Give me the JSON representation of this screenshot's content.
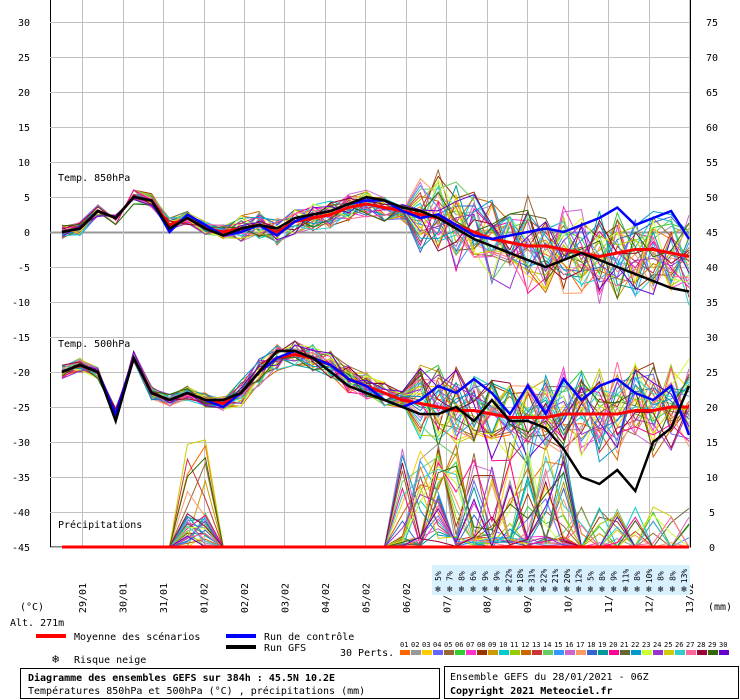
{
  "chart_data": {
    "type": "line",
    "title": "Diagramme des ensembles GEFS sur 384h : 45.5N 10.2E",
    "subtitle": "Températures 850hPa et 500hPa (°C) , précipitations (mm)",
    "run_info": "Ensemble GEFS du 28/01/2021 - 06Z",
    "copyright": "Copyright 2021 Meteociel.fr",
    "altitude": "Alt. 271m",
    "left_unit": "(°C)",
    "right_unit": "(mm)",
    "panel_labels": {
      "t850": "Temp. 850hPa",
      "t500": "Temp. 500hPa",
      "precip": "Précipitations"
    },
    "left_axis": {
      "ticks": [
        30,
        25,
        20,
        15,
        10,
        5,
        0,
        -5,
        -10,
        -15,
        -20,
        -25,
        -30,
        -35,
        -40,
        -45
      ],
      "ylim": [
        -45,
        30
      ]
    },
    "right_axis": {
      "ticks": [
        75,
        70,
        65,
        60,
        55,
        50,
        45,
        40,
        35,
        30,
        25,
        20,
        15,
        10,
        5,
        0
      ],
      "ylim": [
        0,
        75
      ]
    },
    "x_ticks": [
      "29/01",
      "30/01",
      "31/01",
      "01/02",
      "02/02",
      "03/02",
      "04/02",
      "05/02",
      "06/02",
      "07/02",
      "08/02",
      "09/02",
      "10/02",
      "11/02",
      "12/02",
      "13/02"
    ],
    "snow_risk": [
      "5%",
      "7%",
      "8%",
      "6%",
      "9%",
      "9%",
      "22%",
      "18%",
      "31%",
      "22%",
      "21%",
      "20%",
      "12%",
      "5%",
      "8%",
      "9%",
      "11%",
      "8%",
      "10%",
      "8%",
      "8%",
      "13%"
    ],
    "legend": {
      "mean": "Moyenne des scénarios",
      "control": "Run de contrôle",
      "gfs": "Run GFS",
      "snow": "Risque neige",
      "perts_label": "30 Perts.",
      "perts": [
        "01",
        "02",
        "03",
        "04",
        "05",
        "06",
        "07",
        "08",
        "09",
        "10",
        "11",
        "12",
        "13",
        "14",
        "15",
        "16",
        "17",
        "18",
        "19",
        "20",
        "21",
        "22",
        "23",
        "24",
        "25",
        "26",
        "27",
        "28",
        "29",
        "30"
      ],
      "pert_colors": [
        "#ff6600",
        "#999999",
        "#ffcc00",
        "#6666ff",
        "#996633",
        "#33cc33",
        "#ff33cc",
        "#993300",
        "#cc9900",
        "#00cccc",
        "#99cc00",
        "#cc6600",
        "#cc3333",
        "#66cc66",
        "#3399ff",
        "#cc66cc",
        "#ff9966",
        "#3366cc",
        "#009999",
        "#ff0099",
        "#666633",
        "#0099cc",
        "#ccff33",
        "#9933cc",
        "#cccc00",
        "#33cccc",
        "#ff6699",
        "#990033",
        "#336600",
        "#6600cc"
      ]
    },
    "series_colors": {
      "mean": "#ff0000",
      "control": "#0000ff",
      "gfs": "#000000"
    },
    "series": [
      {
        "name": "Moyenne des scénarios",
        "panel": "t850",
        "values": [
          0,
          0.5,
          3,
          2,
          5,
          4.5,
          1,
          2,
          0.5,
          0,
          0.5,
          1,
          0,
          1.5,
          2,
          2.5,
          3.5,
          4,
          3.5,
          3,
          2.5,
          2,
          1,
          0,
          -1,
          -1.5,
          -2,
          -2,
          -2.5,
          -3,
          -3.5,
          -3,
          -2.5,
          -2.5,
          -3,
          -3.5
        ]
      },
      {
        "name": "Run de contrôle",
        "panel": "t850",
        "values": [
          0,
          0.5,
          3,
          2,
          5,
          4.5,
          0,
          2.5,
          1,
          -0.5,
          0,
          1,
          -0.5,
          1.5,
          2.5,
          3,
          4,
          4.5,
          4.5,
          3,
          2,
          2.5,
          1,
          -0.5,
          -1,
          -0.5,
          0,
          0.5,
          0,
          1,
          2,
          3.5,
          1,
          2,
          3,
          -1
        ]
      },
      {
        "name": "Run GFS",
        "panel": "t850",
        "values": [
          0,
          0.5,
          3,
          2,
          5,
          4.5,
          0.5,
          2,
          0.5,
          -0.5,
          0.5,
          1,
          0.5,
          2,
          2.5,
          3,
          4,
          5,
          4.5,
          3.5,
          3,
          2,
          0.5,
          -1,
          -2,
          -3,
          -4,
          -5,
          -4,
          -3,
          -4,
          -5,
          -6,
          -7,
          -8,
          -8.5
        ]
      },
      {
        "name": "Moyenne des scénarios",
        "panel": "t500",
        "values": [
          -20,
          -19,
          -20,
          -26,
          -18,
          -23,
          -24,
          -23,
          -24,
          -24.5,
          -23,
          -20,
          -18,
          -17.5,
          -18,
          -19,
          -21,
          -22,
          -23,
          -24,
          -24.5,
          -25,
          -25.5,
          -25.5,
          -26,
          -26.5,
          -26.5,
          -26.5,
          -26,
          -26,
          -26,
          -26,
          -25.5,
          -25.5,
          -25,
          -25
        ]
      },
      {
        "name": "Run de contrôle",
        "panel": "t500",
        "values": [
          -20,
          -19,
          -20,
          -26,
          -18,
          -23,
          -24,
          -23,
          -24,
          -25,
          -23,
          -20,
          -18,
          -17,
          -18,
          -19,
          -21,
          -22,
          -24,
          -25,
          -24,
          -22,
          -23,
          -21,
          -23,
          -26,
          -22,
          -26,
          -21,
          -24,
          -22,
          -21,
          -23,
          -24,
          -22,
          -29
        ]
      },
      {
        "name": "Run GFS",
        "panel": "t500",
        "values": [
          -20,
          -19,
          -20,
          -27,
          -18,
          -23,
          -24,
          -23,
          -24,
          -24,
          -23,
          -20,
          -17,
          -17,
          -18,
          -20,
          -22,
          -23,
          -24,
          -25,
          -26,
          -26,
          -25,
          -27,
          -24,
          -27,
          -27,
          -28,
          -31,
          -35,
          -36,
          -34,
          -37,
          -30,
          -28,
          -22
        ]
      },
      {
        "name": "Moyenne des scénarios",
        "panel": "precip",
        "values": [
          0,
          0,
          0,
          0,
          0,
          0,
          0,
          0,
          0,
          0,
          0,
          0,
          0,
          0,
          0,
          0,
          0,
          0,
          0,
          0,
          0,
          0,
          0,
          0,
          0,
          0,
          0,
          0,
          0,
          0,
          0,
          0,
          0,
          0,
          0,
          0
        ]
      }
    ]
  }
}
